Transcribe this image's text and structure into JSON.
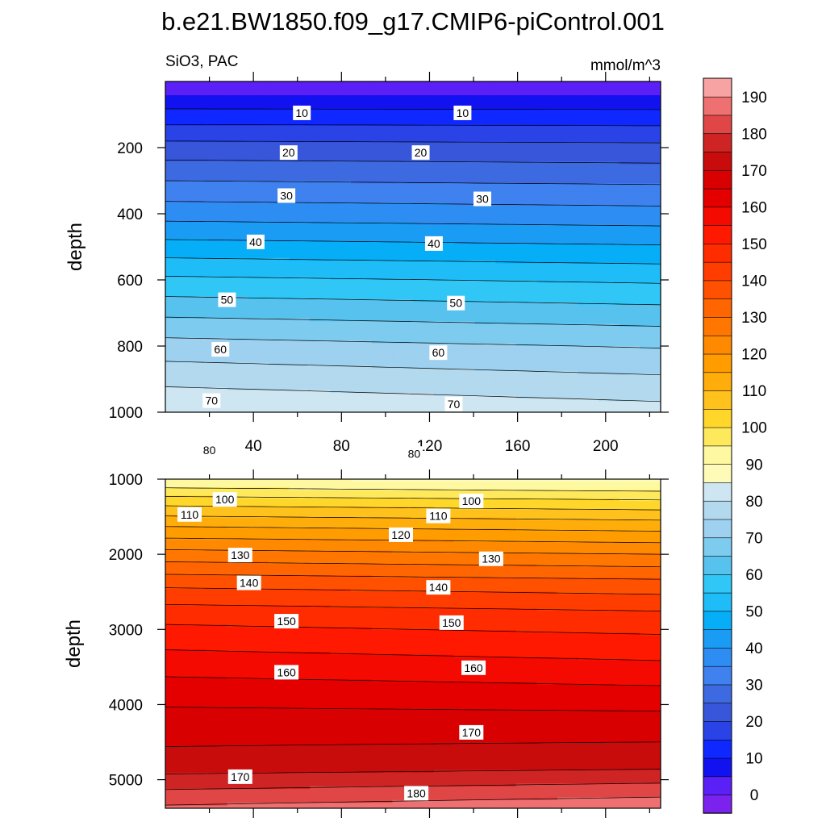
{
  "chart_data": {
    "type": "contour",
    "title": "b.e21.BW1850.f09_g17.CMIP6-piControl.001",
    "subtitle_left": "SiO3, PAC",
    "subtitle_right": "mmol/m^3",
    "colorbar": {
      "levels": [
        -5,
        0,
        5,
        10,
        15,
        20,
        25,
        30,
        35,
        40,
        45,
        50,
        55,
        60,
        65,
        70,
        75,
        80,
        85,
        90,
        95,
        100,
        105,
        110,
        115,
        120,
        125,
        130,
        135,
        140,
        145,
        150,
        155,
        160,
        165,
        170,
        175,
        180,
        185,
        190,
        195
      ],
      "tick_labels": [
        "0",
        "10",
        "20",
        "30",
        "40",
        "50",
        "60",
        "70",
        "80",
        "90",
        "100",
        "110",
        "120",
        "130",
        "140",
        "150",
        "160",
        "170",
        "180",
        "190"
      ],
      "colors": [
        "#7c22ee",
        "#5a20f5",
        "#1212f0",
        "#0f28ff",
        "#2a43e6",
        "#3856da",
        "#3d6ae0",
        "#3f81ef",
        "#2e8df2",
        "#1a9cf5",
        "#06aef8",
        "#1fbdf8",
        "#30c6f5",
        "#58c2ef",
        "#7ecbf0",
        "#9dd1ef",
        "#b2d9ee",
        "#cde6f2",
        "#fefab8",
        "#fef8a0",
        "#fee95c",
        "#ffd62a",
        "#ffc11c",
        "#ffad0a",
        "#ff9c00",
        "#ff8900",
        "#ff7700",
        "#ff6500",
        "#ff5100",
        "#ff3d00",
        "#ff2c00",
        "#ff1900",
        "#f40a00",
        "#e50000",
        "#d80000",
        "#c80c0c",
        "#cf2424",
        "#e04646",
        "#ee7070",
        "#f8a3a3"
      ]
    },
    "panels": [
      {
        "name": "upper",
        "y_label": "depth",
        "y_range": [
          0,
          1000
        ],
        "y_ticks": [
          200,
          400,
          600,
          800,
          1000
        ],
        "x_range": [
          0,
          225
        ],
        "x_ticks": [
          40,
          80,
          120,
          160,
          200
        ],
        "contour_labels": [
          {
            "text": "10",
            "x": 62,
            "y": 95
          },
          {
            "text": "10",
            "x": 135,
            "y": 95
          },
          {
            "text": "20",
            "x": 56,
            "y": 215
          },
          {
            "text": "20",
            "x": 116,
            "y": 215
          },
          {
            "text": "30",
            "x": 55,
            "y": 345
          },
          {
            "text": "30",
            "x": 144,
            "y": 355
          },
          {
            "text": "40",
            "x": 41,
            "y": 485
          },
          {
            "text": "40",
            "x": 122,
            "y": 490
          },
          {
            "text": "50",
            "x": 28,
            "y": 660
          },
          {
            "text": "50",
            "x": 132,
            "y": 670
          },
          {
            "text": "60",
            "x": 25,
            "y": 810
          },
          {
            "text": "60",
            "x": 124,
            "y": 820
          },
          {
            "text": "70",
            "x": 21,
            "y": 965
          },
          {
            "text": "70",
            "x": 131,
            "y": 975
          },
          {
            "text": "80",
            "x": 20,
            "y": 1115
          },
          {
            "text": "80",
            "x": 113,
            "y": 1125
          }
        ]
      },
      {
        "name": "lower",
        "y_label": "depth",
        "y_range": [
          1000,
          5380
        ],
        "y_ticks": [
          1000,
          2000,
          3000,
          4000,
          5000
        ],
        "x_range": [
          0,
          225
        ],
        "contour_labels": [
          {
            "text": "100",
            "x": 27,
            "y": 1270
          },
          {
            "text": "100",
            "x": 139,
            "y": 1290
          },
          {
            "text": "110",
            "x": 11,
            "y": 1470
          },
          {
            "text": "110",
            "x": 124,
            "y": 1490
          },
          {
            "text": "120",
            "x": 107,
            "y": 1740
          },
          {
            "text": "130",
            "x": 34,
            "y": 2010
          },
          {
            "text": "130",
            "x": 148,
            "y": 2060
          },
          {
            "text": "140",
            "x": 38,
            "y": 2380
          },
          {
            "text": "140",
            "x": 124,
            "y": 2440
          },
          {
            "text": "150",
            "x": 55,
            "y": 2890
          },
          {
            "text": "150",
            "x": 130,
            "y": 2910
          },
          {
            "text": "160",
            "x": 55,
            "y": 3570
          },
          {
            "text": "160",
            "x": 140,
            "y": 3510
          },
          {
            "text": "170",
            "x": 139,
            "y": 4370
          },
          {
            "text": "170",
            "x": 34,
            "y": 4960
          },
          {
            "text": "180",
            "x": 114,
            "y": 5180
          }
        ]
      }
    ]
  }
}
